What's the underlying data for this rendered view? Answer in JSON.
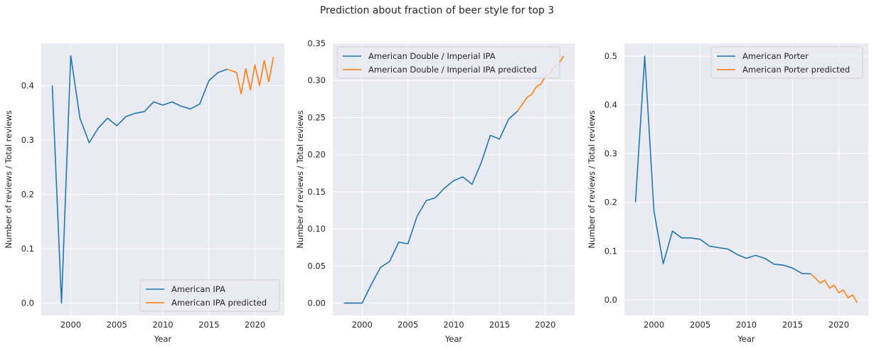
{
  "figure": {
    "title": "Prediction about fraction of beer style for top 3"
  },
  "colors": {
    "axes_background": "#eaeaf2",
    "grid": "#ffffff",
    "observed": "#1f77b4",
    "predicted": "#ff7f0e",
    "text": "#262626"
  },
  "chart_data": [
    {
      "type": "line",
      "xlabel": "Year",
      "ylabel": "Number of reviews / Total reviews",
      "xlim": [
        1996.8,
        2023.2
      ],
      "ylim": [
        -0.0228,
        0.4776
      ],
      "xticks": [
        2000,
        2005,
        2010,
        2015,
        2020
      ],
      "yticks": [
        0.0,
        0.1,
        0.2,
        0.3,
        0.4
      ],
      "ytick_labels": [
        "0.0",
        "0.1",
        "0.2",
        "0.3",
        "0.4"
      ],
      "legend_position": "lower right",
      "grid": true,
      "series": [
        {
          "name": "American IPA",
          "color": "#1f77b4",
          "x": [
            1998,
            1999,
            2000,
            2001,
            2002,
            2003,
            2004,
            2005,
            2006,
            2007,
            2008,
            2009,
            2010,
            2011,
            2012,
            2013,
            2014,
            2015,
            2016,
            2017
          ],
          "y": [
            0.4,
            0.0,
            0.455,
            0.34,
            0.295,
            0.322,
            0.34,
            0.326,
            0.343,
            0.349,
            0.352,
            0.37,
            0.364,
            0.37,
            0.362,
            0.357,
            0.366,
            0.409,
            0.424,
            0.43
          ]
        },
        {
          "name": "American IPA predicted",
          "color": "#ff7f0e",
          "x": [
            2017,
            2018,
            2018.5,
            2019,
            2019.5,
            2020,
            2020.5,
            2021,
            2021.5,
            2022
          ],
          "y": [
            0.43,
            0.424,
            0.385,
            0.431,
            0.392,
            0.438,
            0.4,
            0.446,
            0.407,
            0.453
          ]
        }
      ]
    },
    {
      "type": "line",
      "xlabel": "Year",
      "ylabel": "Number of reviews / Total reviews",
      "xlim": [
        1996.8,
        2023.2
      ],
      "ylim": [
        -0.0167,
        0.35
      ],
      "xticks": [
        2000,
        2005,
        2010,
        2015,
        2020
      ],
      "yticks": [
        0.0,
        0.05,
        0.1,
        0.15,
        0.2,
        0.25,
        0.3,
        0.35
      ],
      "ytick_labels": [
        "0.00",
        "0.05",
        "0.10",
        "0.15",
        "0.20",
        "0.25",
        "0.30",
        "0.35"
      ],
      "legend_position": "upper left",
      "grid": true,
      "series": [
        {
          "name": "American Double / Imperial IPA",
          "color": "#1f77b4",
          "x": [
            1998,
            1999,
            2000,
            2001,
            2002,
            2003,
            2004,
            2005,
            2006,
            2007,
            2008,
            2009,
            2010,
            2011,
            2012,
            2013,
            2014,
            2015,
            2016,
            2017
          ],
          "y": [
            0.0,
            0.0,
            0.0,
            0.025,
            0.048,
            0.056,
            0.082,
            0.08,
            0.117,
            0.138,
            0.142,
            0.155,
            0.165,
            0.17,
            0.16,
            0.189,
            0.226,
            0.221,
            0.248,
            0.259
          ]
        },
        {
          "name": "American Double / Imperial IPA predicted",
          "color": "#ff7f0e",
          "x": [
            2017,
            2017.5,
            2018,
            2018.5,
            2019,
            2019.5,
            2020,
            2020.5,
            2021,
            2021.5,
            2022
          ],
          "y": [
            0.259,
            0.268,
            0.277,
            0.281,
            0.291,
            0.295,
            0.305,
            0.309,
            0.319,
            0.323,
            0.333
          ]
        }
      ]
    },
    {
      "type": "line",
      "xlabel": "Year",
      "ylabel": "Number of reviews / Total reviews",
      "xlim": [
        1996.8,
        2023.2
      ],
      "ylim": [
        -0.0323,
        0.5262
      ],
      "xticks": [
        2000,
        2005,
        2010,
        2015,
        2020
      ],
      "yticks": [
        0.0,
        0.1,
        0.2,
        0.3,
        0.4,
        0.5
      ],
      "ytick_labels": [
        "0.0",
        "0.1",
        "0.2",
        "0.3",
        "0.4",
        "0.5"
      ],
      "legend_position": "upper right",
      "grid": true,
      "series": [
        {
          "name": "American Porter",
          "color": "#1f77b4",
          "x": [
            1998,
            1999,
            2000,
            2001,
            2002,
            2003,
            2004,
            2005,
            2006,
            2007,
            2008,
            2009,
            2010,
            2011,
            2012,
            2013,
            2014,
            2015,
            2016,
            2017
          ],
          "y": [
            0.2,
            0.5,
            0.182,
            0.074,
            0.141,
            0.127,
            0.127,
            0.124,
            0.11,
            0.107,
            0.104,
            0.093,
            0.085,
            0.091,
            0.085,
            0.073,
            0.071,
            0.065,
            0.054,
            0.053
          ]
        },
        {
          "name": "American Porter predicted",
          "color": "#ff7f0e",
          "x": [
            2017,
            2017.5,
            2018,
            2018.5,
            2019,
            2019.5,
            2020,
            2020.5,
            2021,
            2021.5,
            2022
          ],
          "y": [
            0.053,
            0.044,
            0.034,
            0.04,
            0.024,
            0.03,
            0.014,
            0.02,
            0.004,
            0.01,
            -0.006
          ]
        }
      ]
    }
  ]
}
